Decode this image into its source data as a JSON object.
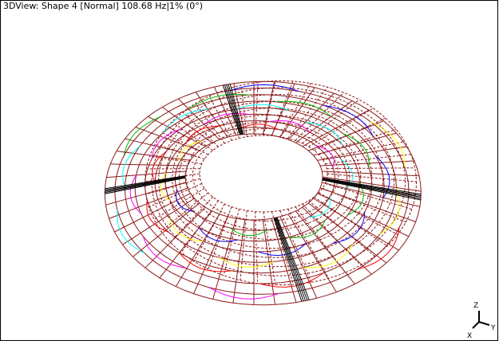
{
  "view": {
    "title": "3DView: Shape 4 [Normal] 108.68 Hz|1% (0°)"
  },
  "axes": {
    "z": "Z",
    "y": "Y",
    "x": "X"
  }
}
